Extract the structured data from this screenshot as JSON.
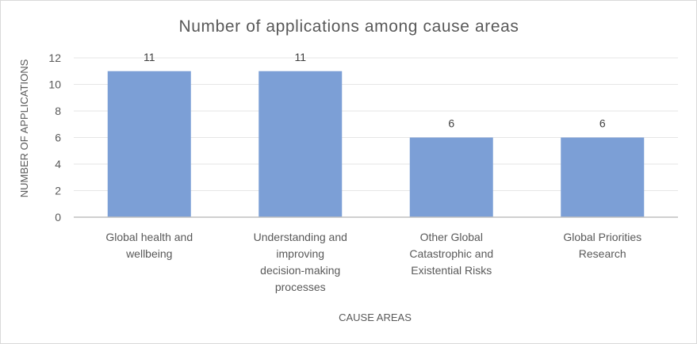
{
  "chart_data": {
    "type": "bar",
    "title": "Number of applications among cause areas",
    "xlabel": "CAUSE AREAS",
    "ylabel": "NUMBER OF APPLICATIONS",
    "categories": [
      [
        "Global health and",
        "wellbeing"
      ],
      [
        "Understanding and",
        "improving",
        "decision-making",
        "processes"
      ],
      [
        "Other Global",
        "Catastrophic and",
        "Existential Risks"
      ],
      [
        "Global Priorities",
        "Research"
      ]
    ],
    "values": [
      11,
      11,
      6,
      6
    ],
    "data_labels": [
      "11",
      "11",
      "6",
      "6"
    ],
    "ylim": [
      0,
      12
    ],
    "yticks": [
      0,
      2,
      4,
      6,
      8,
      10,
      12
    ],
    "grid": true,
    "bar_color": "#7c9fd6",
    "legend": "none"
  }
}
